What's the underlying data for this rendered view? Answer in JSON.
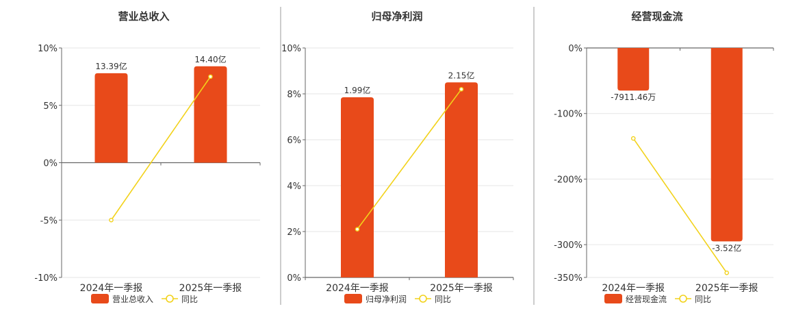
{
  "colors": {
    "bar": "#E84A1A",
    "line": "#F2D21B",
    "axis": "#666666",
    "grid": "#E6E6E6",
    "divider": "#999999",
    "text": "#333333"
  },
  "chart_data": [
    {
      "type": "bar",
      "title": "营业总收入",
      "categories": [
        "2024年一季报",
        "2025年一季报"
      ],
      "ylim": [
        -10,
        10
      ],
      "yticks": [
        -10,
        -5,
        0,
        5,
        10
      ],
      "ytick_labels": [
        "-10%",
        "-5%",
        "0%",
        "5%",
        "10%"
      ],
      "grid": true,
      "legend_position": "bottom",
      "series": [
        {
          "name": "营业总收入",
          "kind": "bar",
          "values": [
            7.8,
            8.4
          ],
          "labels": [
            "13.39亿",
            "14.40亿"
          ]
        },
        {
          "name": "同比",
          "kind": "line",
          "values": [
            -5.0,
            7.5
          ]
        }
      ]
    },
    {
      "type": "bar",
      "title": "归母净利润",
      "categories": [
        "2024年一季报",
        "2025年一季报"
      ],
      "ylim": [
        0,
        10
      ],
      "yticks": [
        0,
        2,
        4,
        6,
        8,
        10
      ],
      "ytick_labels": [
        "0%",
        "2%",
        "4%",
        "6%",
        "8%",
        "10%"
      ],
      "grid": true,
      "legend_position": "bottom",
      "series": [
        {
          "name": "归母净利润",
          "kind": "bar",
          "values": [
            7.85,
            8.5
          ],
          "labels": [
            "1.99亿",
            "2.15亿"
          ]
        },
        {
          "name": "同比",
          "kind": "line",
          "values": [
            2.1,
            8.2
          ]
        }
      ]
    },
    {
      "type": "bar",
      "title": "经营现金流",
      "categories": [
        "2024年一季报",
        "2025年一季报"
      ],
      "ylim": [
        -350,
        0
      ],
      "yticks": [
        -350,
        -300,
        -200,
        -100,
        0
      ],
      "ytick_labels": [
        "-350%",
        "-300%",
        "-200%",
        "-100%",
        "0%"
      ],
      "grid": true,
      "legend_position": "bottom",
      "series": [
        {
          "name": "经营现金流",
          "kind": "bar",
          "values": [
            -65,
            -295
          ],
          "labels": [
            "-7911.46万",
            "-3.52亿"
          ]
        },
        {
          "name": "同比",
          "kind": "line",
          "values": [
            -138,
            -343
          ]
        }
      ]
    }
  ]
}
